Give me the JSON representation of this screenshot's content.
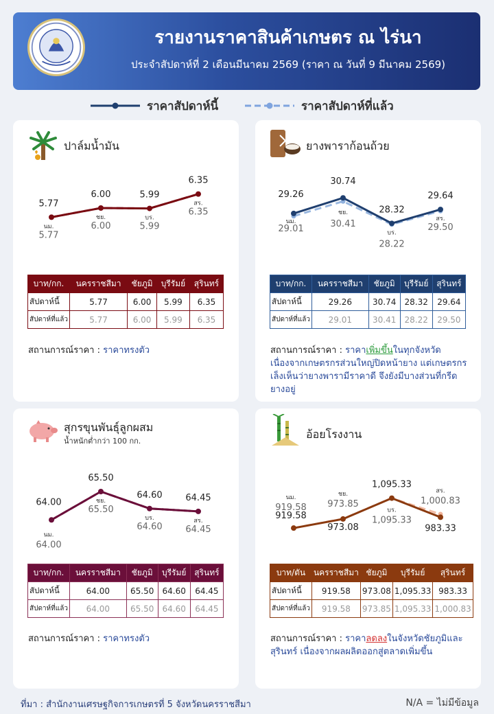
{
  "header": {
    "title": "รายงานราคาสินค้าเกษตร ณ ไร่นา",
    "subtitle": "ประจำสัปดาห์ที่ 2 เดือนมีนาคม 2569 (ราคา ณ วันที่ 9 มีนาคม 2569)",
    "seal_icon": "agency-seal-icon",
    "seal_text": "สำนักงานเศรษฐกิจการเกษตร"
  },
  "legend": {
    "this_week": "ราคาสัปดาห์นี้",
    "last_week": "ราคาสัปดาห์ที่แล้ว"
  },
  "table_labels": {
    "col_unit_kg": "บาท/กก.",
    "col_unit_ton": "บาท/ตัน",
    "provinces": [
      "นครราชสีมา",
      "ชัยภูมิ",
      "บุรีรัมย์",
      "สุรินทร์"
    ],
    "row_this": "สัปดาห์นี้",
    "row_last": "สัปดาห์ที่แล้ว"
  },
  "status_label": "สถานการณ์ราคา :",
  "chart_data": [
    {
      "type": "line",
      "title": "ปาล์มน้ำมัน",
      "icon": "oil-palm-icon",
      "unit": "บาท/กก.",
      "categories": [
        "นครราชสีมา",
        "ชัยภูมิ",
        "บุรีรัมย์",
        "สุรินทร์"
      ],
      "point_labels": [
        "นม.",
        "ชย.",
        "บร.",
        "สร."
      ],
      "series": [
        {
          "name": "ราคาสัปดาห์นี้",
          "values": [
            5.77,
            6.0,
            5.99,
            6.35
          ],
          "labels": [
            "5.77",
            "6.00",
            "5.99",
            "6.35"
          ]
        },
        {
          "name": "ราคาสัปดาห์ที่แล้ว",
          "values": [
            5.77,
            6.0,
            5.99,
            6.35
          ],
          "labels": [
            "5.77",
            "6.00",
            "5.99",
            "6.35"
          ]
        }
      ],
      "ylim": [
        5.45,
        6.55
      ],
      "color": "#7a0b12",
      "prev_color": "#7a0b12",
      "status_parts": [
        {
          "t": "ราคาทรงตัว",
          "c": "v"
        }
      ]
    },
    {
      "type": "line",
      "title": "ยางพาราก้อนถ้วย",
      "icon": "rubber-cup-icon",
      "unit": "บาท/กก.",
      "categories": [
        "นครราชสีมา",
        "ชัยภูมิ",
        "บุรีรัมย์",
        "สุรินทร์"
      ],
      "point_labels": [
        "นม.",
        "ชย.",
        "บร.",
        "สร."
      ],
      "series": [
        {
          "name": "ราคาสัปดาห์นี้",
          "values": [
            29.26,
            30.74,
            28.32,
            29.64
          ],
          "labels": [
            "29.26",
            "30.74",
            "28.32",
            "29.64"
          ]
        },
        {
          "name": "ราคาสัปดาห์ที่แล้ว",
          "values": [
            29.01,
            30.41,
            28.22,
            29.5
          ],
          "labels": [
            "29.01",
            "30.41",
            "28.22",
            "29.50"
          ]
        }
      ],
      "ylim": [
        27.3,
        31.6
      ],
      "color": "#1f3f6f",
      "prev_color": "#8fb0dd",
      "status_parts": [
        {
          "t": "ราคา",
          "c": "v"
        },
        {
          "t": "เพิ่มขึ้น",
          "c": "up"
        },
        {
          "t": "ในทุกจังหวัด เนื่องจากเกษตรกรส่วนใหญ่ปิดหน้ายาง แต่เกษตรกรเล็งเห็นว่ายางพารามีราคาดี จึงยังมีบางส่วนที่กรีดยางอยู่",
          "c": "v"
        }
      ]
    },
    {
      "type": "line",
      "title": "สุกรขุนพันธุ์ลูกผสม",
      "subtitle": "น้ำหนักต่ำกว่า 100 กก.",
      "icon": "pig-icon",
      "unit": "บาท/กก.",
      "categories": [
        "นครราชสีมา",
        "ชัยภูมิ",
        "บุรีรัมย์",
        "สุรินทร์"
      ],
      "point_labels": [
        "นม.",
        "ชย.",
        "บร.",
        "สร."
      ],
      "series": [
        {
          "name": "ราคาสัปดาห์นี้",
          "values": [
            64.0,
            65.5,
            64.6,
            64.45
          ],
          "labels": [
            "64.00",
            "65.50",
            "64.60",
            "64.45"
          ]
        },
        {
          "name": "ราคาสัปดาห์ที่แล้ว",
          "values": [
            64.0,
            65.5,
            64.6,
            64.45
          ],
          "labels": [
            "64.00",
            "65.50",
            "64.60",
            "64.45"
          ]
        }
      ],
      "ylim": [
        63.5,
        65.9
      ],
      "color": "#6b0f3a",
      "prev_color": "#6b0f3a",
      "status_parts": [
        {
          "t": "ราคาทรงตัว",
          "c": "v"
        }
      ]
    },
    {
      "type": "line",
      "title": "อ้อยโรงงาน",
      "icon": "sugarcane-icon",
      "unit": "บาท/ตัน",
      "categories": [
        "นครราชสีมา",
        "ชัยภูมิ",
        "บุรีรัมย์",
        "สุรินทร์"
      ],
      "point_labels": [
        "นม.",
        "ชย.",
        "บร.",
        "สร."
      ],
      "series": [
        {
          "name": "ราคาสัปดาห์นี้",
          "values": [
            919.58,
            973.08,
            1095.33,
            983.33
          ],
          "labels": [
            "919.58",
            "973.08",
            "1,095.33",
            "983.33"
          ]
        },
        {
          "name": "ราคาสัปดาห์ที่แล้ว",
          "values": [
            919.58,
            973.85,
            1095.33,
            1000.83
          ],
          "labels": [
            "919.58",
            "973.85",
            "1,095.33",
            "1,000.83"
          ]
        }
      ],
      "ylim": [
        880,
        1130
      ],
      "color": "#8b3a0f",
      "prev_color": "#f0b49a",
      "status_parts": [
        {
          "t": "ราคา",
          "c": "v"
        },
        {
          "t": "ลดลง",
          "c": "down"
        },
        {
          "t": "ในจังหวัดชัยภูมิและสุรินทร์ เนื่องจากผลผลิตออกสู่ตลาดเพิ่มขึ้น",
          "c": "v"
        }
      ]
    }
  ],
  "footer": {
    "source": "ที่มา : สำนักงานเศรษฐกิจการเกษตรที่ 5 จังหวัดนครราชสีมา",
    "na_note": "N/A = ไม่มีข้อมูล"
  }
}
